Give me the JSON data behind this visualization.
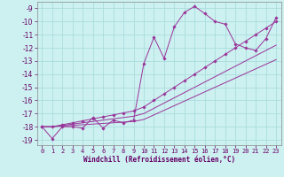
{
  "bg_color": "#cdf0f0",
  "grid_color": "#aadddd",
  "line_color": "#993399",
  "marker_color": "#993399",
  "xlabel": "Windchill (Refroidissement éolien,°C)",
  "xlim": [
    -0.5,
    23.5
  ],
  "ylim": [
    -19.4,
    -8.5
  ],
  "yticks": [
    -9,
    -10,
    -11,
    -12,
    -13,
    -14,
    -15,
    -16,
    -17,
    -18,
    -19
  ],
  "xticks": [
    0,
    1,
    2,
    3,
    4,
    5,
    6,
    7,
    8,
    9,
    10,
    11,
    12,
    13,
    14,
    15,
    16,
    17,
    18,
    19,
    20,
    21,
    22,
    23
  ],
  "series1_x": [
    0,
    1,
    2,
    3,
    4,
    5,
    6,
    7,
    8,
    9,
    10,
    11,
    12,
    13,
    14,
    15,
    16,
    17,
    18,
    19,
    20,
    21,
    22,
    23
  ],
  "series1_y": [
    -18.0,
    -18.9,
    -18.0,
    -18.0,
    -18.1,
    -17.3,
    -18.1,
    -17.5,
    -17.7,
    -17.5,
    -13.2,
    -11.2,
    -12.8,
    -10.4,
    -9.3,
    -8.85,
    -9.4,
    -10.0,
    -10.2,
    -11.7,
    -12.0,
    -12.2,
    -11.3,
    -9.7
  ],
  "series2_x": [
    0,
    1,
    2,
    3,
    4,
    5,
    6,
    7,
    8,
    9,
    10,
    11,
    12,
    13,
    14,
    15,
    16,
    17,
    18,
    19,
    20,
    21,
    22,
    23
  ],
  "series2_y": [
    -18.0,
    -18.0,
    -17.85,
    -17.7,
    -17.55,
    -17.4,
    -17.25,
    -17.1,
    -16.95,
    -16.8,
    -16.5,
    -16.0,
    -15.5,
    -15.0,
    -14.5,
    -14.0,
    -13.5,
    -13.0,
    -12.5,
    -12.0,
    -11.5,
    -11.0,
    -10.5,
    -10.0
  ],
  "series3_x": [
    0,
    1,
    2,
    3,
    4,
    5,
    6,
    7,
    8,
    9,
    10,
    11,
    12,
    13,
    14,
    15,
    16,
    17,
    18,
    19,
    20,
    21,
    22,
    23
  ],
  "series3_y": [
    -18.0,
    -18.0,
    -17.9,
    -17.8,
    -17.7,
    -17.6,
    -17.5,
    -17.4,
    -17.3,
    -17.2,
    -17.0,
    -16.6,
    -16.2,
    -15.8,
    -15.4,
    -15.0,
    -14.6,
    -14.2,
    -13.8,
    -13.4,
    -13.0,
    -12.6,
    -12.2,
    -11.8
  ],
  "series4_x": [
    0,
    1,
    2,
    3,
    4,
    5,
    6,
    7,
    8,
    9,
    10,
    11,
    12,
    13,
    14,
    15,
    16,
    17,
    18,
    19,
    20,
    21,
    22,
    23
  ],
  "series4_y": [
    -18.0,
    -18.0,
    -17.95,
    -17.9,
    -17.85,
    -17.8,
    -17.75,
    -17.7,
    -17.65,
    -17.6,
    -17.45,
    -17.1,
    -16.75,
    -16.4,
    -16.05,
    -15.7,
    -15.35,
    -15.0,
    -14.65,
    -14.3,
    -13.95,
    -13.6,
    -13.25,
    -12.9
  ]
}
